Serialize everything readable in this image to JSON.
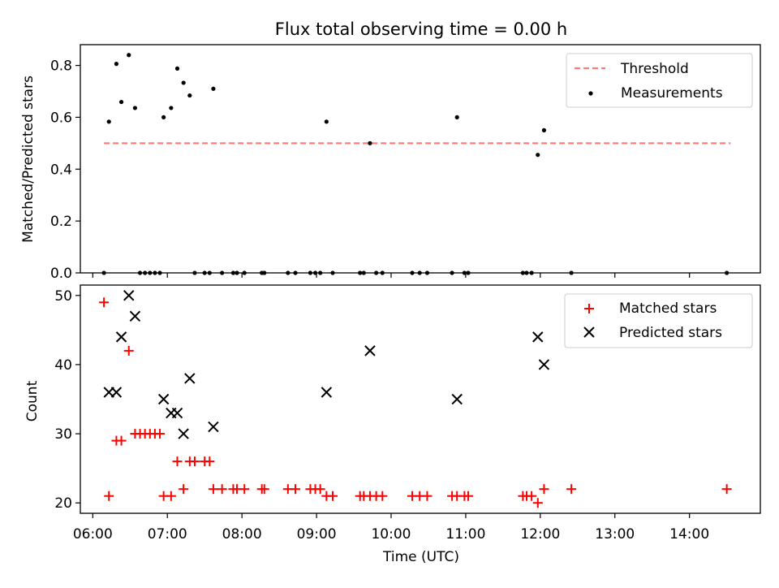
{
  "title": "Flux total observing time = 0.00 h",
  "colors": {
    "threshold": "#ff7b7b",
    "measurements": "#000000",
    "matched": "#ff0000",
    "predicted": "#000000"
  },
  "chart_data": [
    {
      "type": "scatter",
      "ylabel": "Matched/Predicted stars",
      "ylim": [
        0,
        0.88
      ],
      "yticks": [
        0.0,
        0.2,
        0.4,
        0.6,
        0.8
      ],
      "xlim": [
        "05:50",
        "14:57"
      ],
      "legend": {
        "placement": "top-right",
        "entries": [
          "Threshold",
          "Measurements"
        ]
      },
      "threshold": {
        "name": "Threshold",
        "value": 0.5,
        "x": [
          "06:09",
          "14:33"
        ],
        "style": "dashed"
      },
      "series": [
        {
          "name": "Measurements",
          "points": [
            [
              "06:09",
              0.0
            ],
            [
              "06:13",
              0.583
            ],
            [
              "06:19",
              0.806
            ],
            [
              "06:23",
              0.659
            ],
            [
              "06:29",
              0.84
            ],
            [
              "06:34",
              0.636
            ],
            [
              "06:38",
              0.0
            ],
            [
              "06:42",
              0.0
            ],
            [
              "06:46",
              0.0
            ],
            [
              "06:50",
              0.0
            ],
            [
              "06:54",
              0.0
            ],
            [
              "06:57",
              0.6
            ],
            [
              "07:03",
              0.636
            ],
            [
              "07:08",
              0.788
            ],
            [
              "07:13",
              0.733
            ],
            [
              "07:18",
              0.684
            ],
            [
              "07:22",
              0.0
            ],
            [
              "07:30",
              0.0
            ],
            [
              "07:34",
              0.0
            ],
            [
              "07:37",
              0.71
            ],
            [
              "07:44",
              0.0
            ],
            [
              "07:53",
              0.0
            ],
            [
              "07:56",
              0.0
            ],
            [
              "08:02",
              0.0
            ],
            [
              "08:16",
              0.0
            ],
            [
              "08:18",
              0.0
            ],
            [
              "08:37",
              0.0
            ],
            [
              "08:43",
              0.0
            ],
            [
              "08:55",
              0.0
            ],
            [
              "08:59",
              0.0
            ],
            [
              "09:03",
              0.0
            ],
            [
              "09:08",
              0.583
            ],
            [
              "09:13",
              0.0
            ],
            [
              "09:35",
              0.0
            ],
            [
              "09:38",
              0.0
            ],
            [
              "09:43",
              0.5
            ],
            [
              "09:48",
              0.0
            ],
            [
              "09:53",
              0.0
            ],
            [
              "10:17",
              0.0
            ],
            [
              "10:23",
              0.0
            ],
            [
              "10:29",
              0.0
            ],
            [
              "10:49",
              0.0
            ],
            [
              "10:53",
              0.6
            ],
            [
              "10:59",
              0.0
            ],
            [
              "11:02",
              0.0
            ],
            [
              "11:46",
              0.0
            ],
            [
              "11:49",
              0.0
            ],
            [
              "11:53",
              0.0
            ],
            [
              "11:58",
              0.455
            ],
            [
              "12:03",
              0.55
            ],
            [
              "12:25",
              0.0
            ],
            [
              "14:30",
              0.0
            ]
          ]
        }
      ]
    },
    {
      "type": "scatter",
      "xlabel": "Time (UTC)",
      "ylabel": "Count",
      "ylim": [
        18.5,
        51.5
      ],
      "yticks": [
        20,
        30,
        40,
        50
      ],
      "xlim": [
        "05:50",
        "14:57"
      ],
      "xticks": [
        "06:00",
        "07:00",
        "08:00",
        "09:00",
        "10:00",
        "11:00",
        "12:00",
        "13:00",
        "14:00"
      ],
      "legend": {
        "placement": "top-right",
        "entries": [
          "Matched stars",
          "Predicted stars"
        ]
      },
      "series": [
        {
          "name": "Matched stars",
          "marker": "+",
          "points": [
            [
              "06:09",
              49
            ],
            [
              "06:13",
              21
            ],
            [
              "06:19",
              29
            ],
            [
              "06:23",
              29
            ],
            [
              "06:29",
              42
            ],
            [
              "06:34",
              30
            ],
            [
              "06:38",
              30
            ],
            [
              "06:42",
              30
            ],
            [
              "06:46",
              30
            ],
            [
              "06:50",
              30
            ],
            [
              "06:54",
              30
            ],
            [
              "06:57",
              21
            ],
            [
              "07:03",
              21
            ],
            [
              "07:08",
              26
            ],
            [
              "07:13",
              22
            ],
            [
              "07:18",
              26
            ],
            [
              "07:22",
              26
            ],
            [
              "07:30",
              26
            ],
            [
              "07:34",
              26
            ],
            [
              "07:37",
              22
            ],
            [
              "07:44",
              22
            ],
            [
              "07:53",
              22
            ],
            [
              "07:56",
              22
            ],
            [
              "08:02",
              22
            ],
            [
              "08:16",
              22
            ],
            [
              "08:18",
              22
            ],
            [
              "08:37",
              22
            ],
            [
              "08:43",
              22
            ],
            [
              "08:55",
              22
            ],
            [
              "08:59",
              22
            ],
            [
              "09:03",
              22
            ],
            [
              "09:08",
              21
            ],
            [
              "09:13",
              21
            ],
            [
              "09:35",
              21
            ],
            [
              "09:38",
              21
            ],
            [
              "09:43",
              21
            ],
            [
              "09:48",
              21
            ],
            [
              "09:53",
              21
            ],
            [
              "10:17",
              21
            ],
            [
              "10:23",
              21
            ],
            [
              "10:29",
              21
            ],
            [
              "10:49",
              21
            ],
            [
              "10:53",
              21
            ],
            [
              "10:59",
              21
            ],
            [
              "11:02",
              21
            ],
            [
              "11:46",
              21
            ],
            [
              "11:49",
              21
            ],
            [
              "11:53",
              21
            ],
            [
              "11:58",
              20
            ],
            [
              "12:03",
              22
            ],
            [
              "12:25",
              22
            ],
            [
              "14:30",
              22
            ]
          ]
        },
        {
          "name": "Predicted stars",
          "marker": "x",
          "points": [
            [
              "06:13",
              36
            ],
            [
              "06:19",
              36
            ],
            [
              "06:23",
              44
            ],
            [
              "06:29",
              50
            ],
            [
              "06:34",
              47
            ],
            [
              "06:57",
              35
            ],
            [
              "07:03",
              33
            ],
            [
              "07:08",
              33
            ],
            [
              "07:13",
              30
            ],
            [
              "07:18",
              38
            ],
            [
              "07:37",
              31
            ],
            [
              "09:08",
              36
            ],
            [
              "09:43",
              42
            ],
            [
              "10:53",
              35
            ],
            [
              "11:58",
              44
            ],
            [
              "12:03",
              40
            ]
          ]
        }
      ]
    }
  ]
}
